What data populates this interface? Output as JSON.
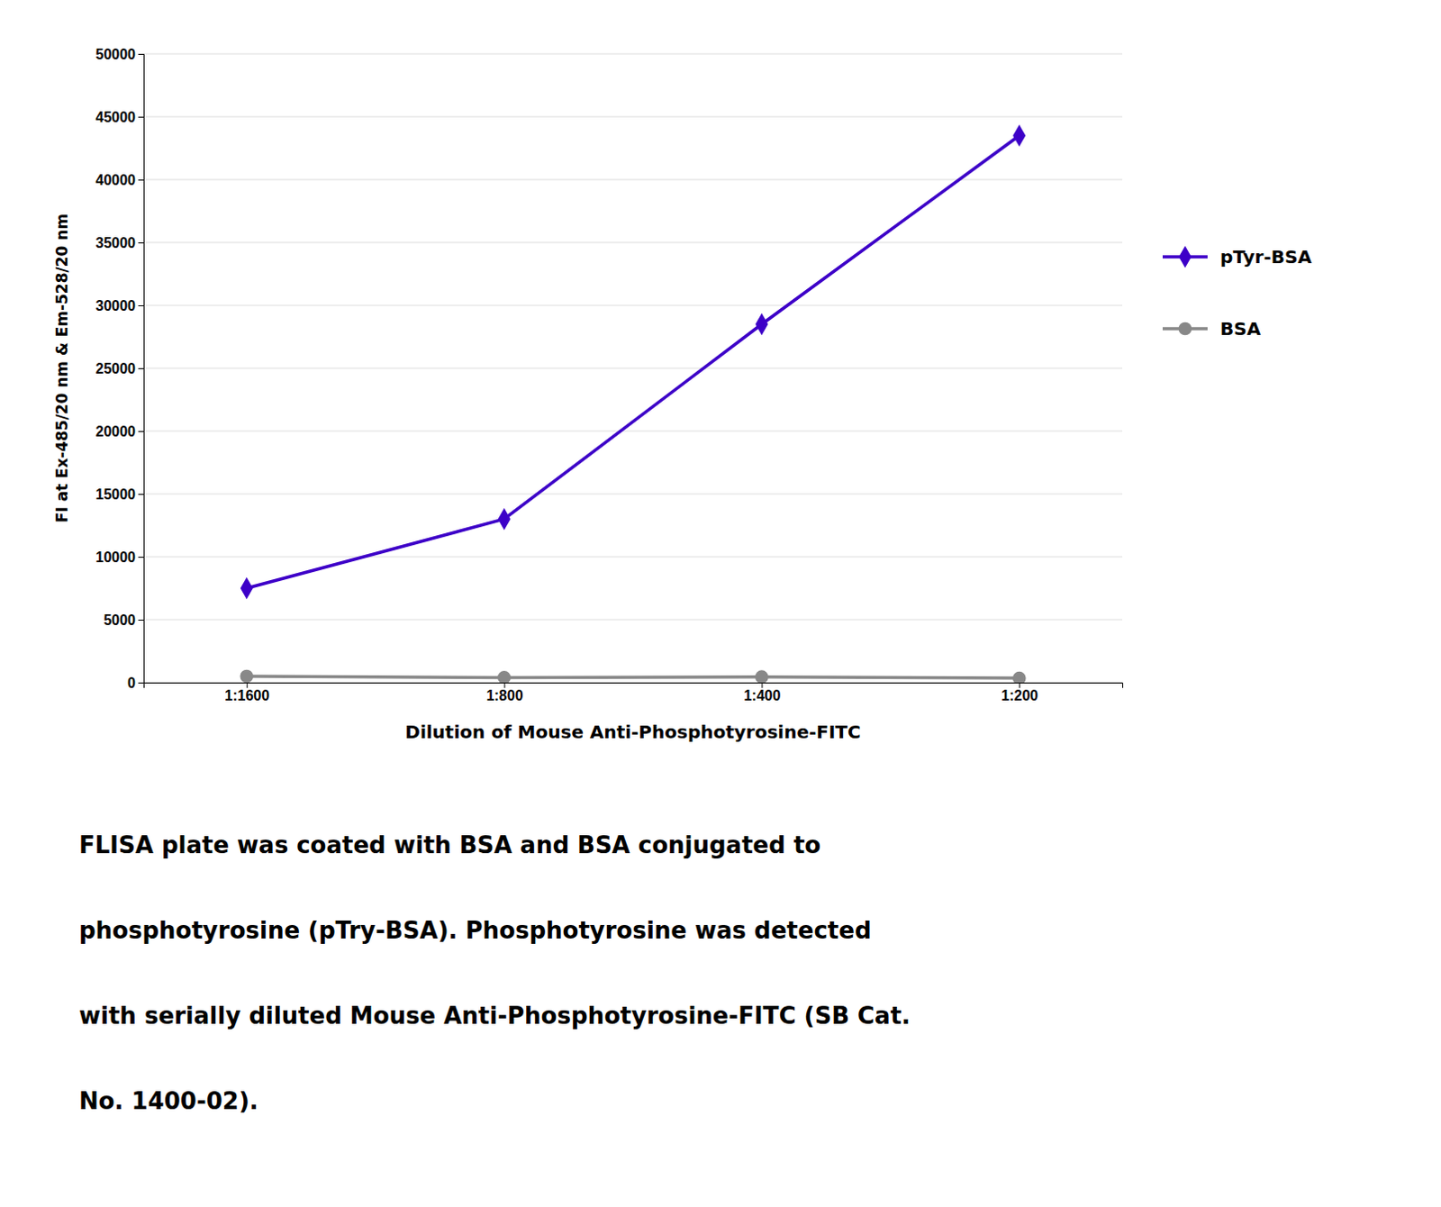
{
  "chart_data": {
    "type": "line",
    "categories": [
      "1:1600",
      "1:800",
      "1:400",
      "1:200"
    ],
    "series": [
      {
        "name": "pTyr-BSA",
        "color": "#3d00c8",
        "marker": "diamond",
        "values": [
          7500,
          13000,
          28500,
          43500
        ]
      },
      {
        "name": "BSA",
        "color": "#888888",
        "marker": "circle",
        "values": [
          500,
          400,
          450,
          350
        ]
      }
    ],
    "xlabel": "Dilution of Mouse Anti-Phosphotyrosine-FITC",
    "ylabel": "FI at Ex-485/20 nm & Em-528/20 nm",
    "ylim": [
      0,
      50000
    ],
    "yticks": [
      0,
      5000,
      10000,
      15000,
      20000,
      25000,
      30000,
      35000,
      40000,
      45000,
      50000
    ],
    "grid": true,
    "legend": "right",
    "annotations": [
      "FLISA plate was coated with BSA and BSA conjugated to",
      "phosphotyrosine (pTry-BSA).  Phosphotyrosine was detected",
      "with serially diluted Mouse Anti-Phosphotyrosine-FITC (SB Cat.",
      "No. 1400-02)."
    ]
  }
}
